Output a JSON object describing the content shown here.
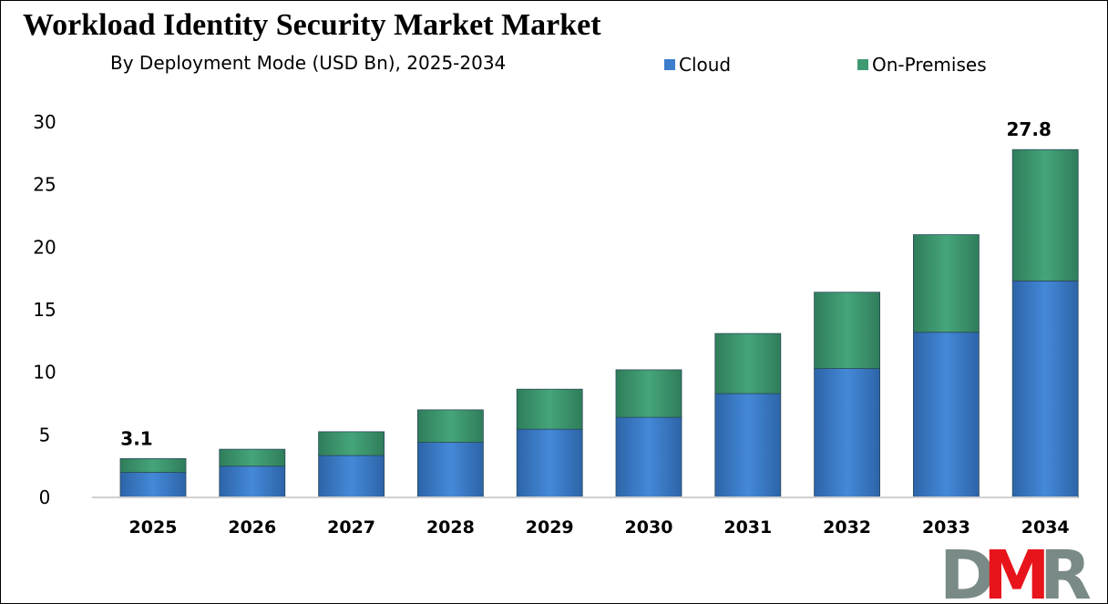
{
  "chart_data": {
    "type": "bar",
    "stacked": true,
    "title": "Workload Identity Security Market Market",
    "subtitle": "By Deployment Mode (USD Bn), 2025-2034",
    "categories": [
      "2025",
      "2026",
      "2027",
      "2028",
      "2029",
      "2030",
      "2031",
      "2032",
      "2033",
      "2034"
    ],
    "series": [
      {
        "name": "Cloud",
        "color": "#3c7dcc",
        "values": [
          2.0,
          2.5,
          3.35,
          4.4,
          5.45,
          6.4,
          8.3,
          10.3,
          13.2,
          17.3
        ]
      },
      {
        "name": "On-Premises",
        "color": "#3f9a72",
        "values": [
          1.1,
          1.35,
          1.9,
          2.6,
          3.2,
          3.8,
          4.8,
          6.1,
          7.8,
          10.5
        ]
      }
    ],
    "data_labels": {
      "2025": "3.1",
      "2034": "27.8"
    },
    "ylim": [
      0,
      30
    ],
    "yticks": [
      "0",
      "5",
      "10",
      "15",
      "20",
      "25",
      "30"
    ],
    "grid": false,
    "legend_position": "top-right"
  },
  "logo": {
    "text": "DMR",
    "colors": [
      "#7a8a86",
      "#e8141b"
    ]
  }
}
